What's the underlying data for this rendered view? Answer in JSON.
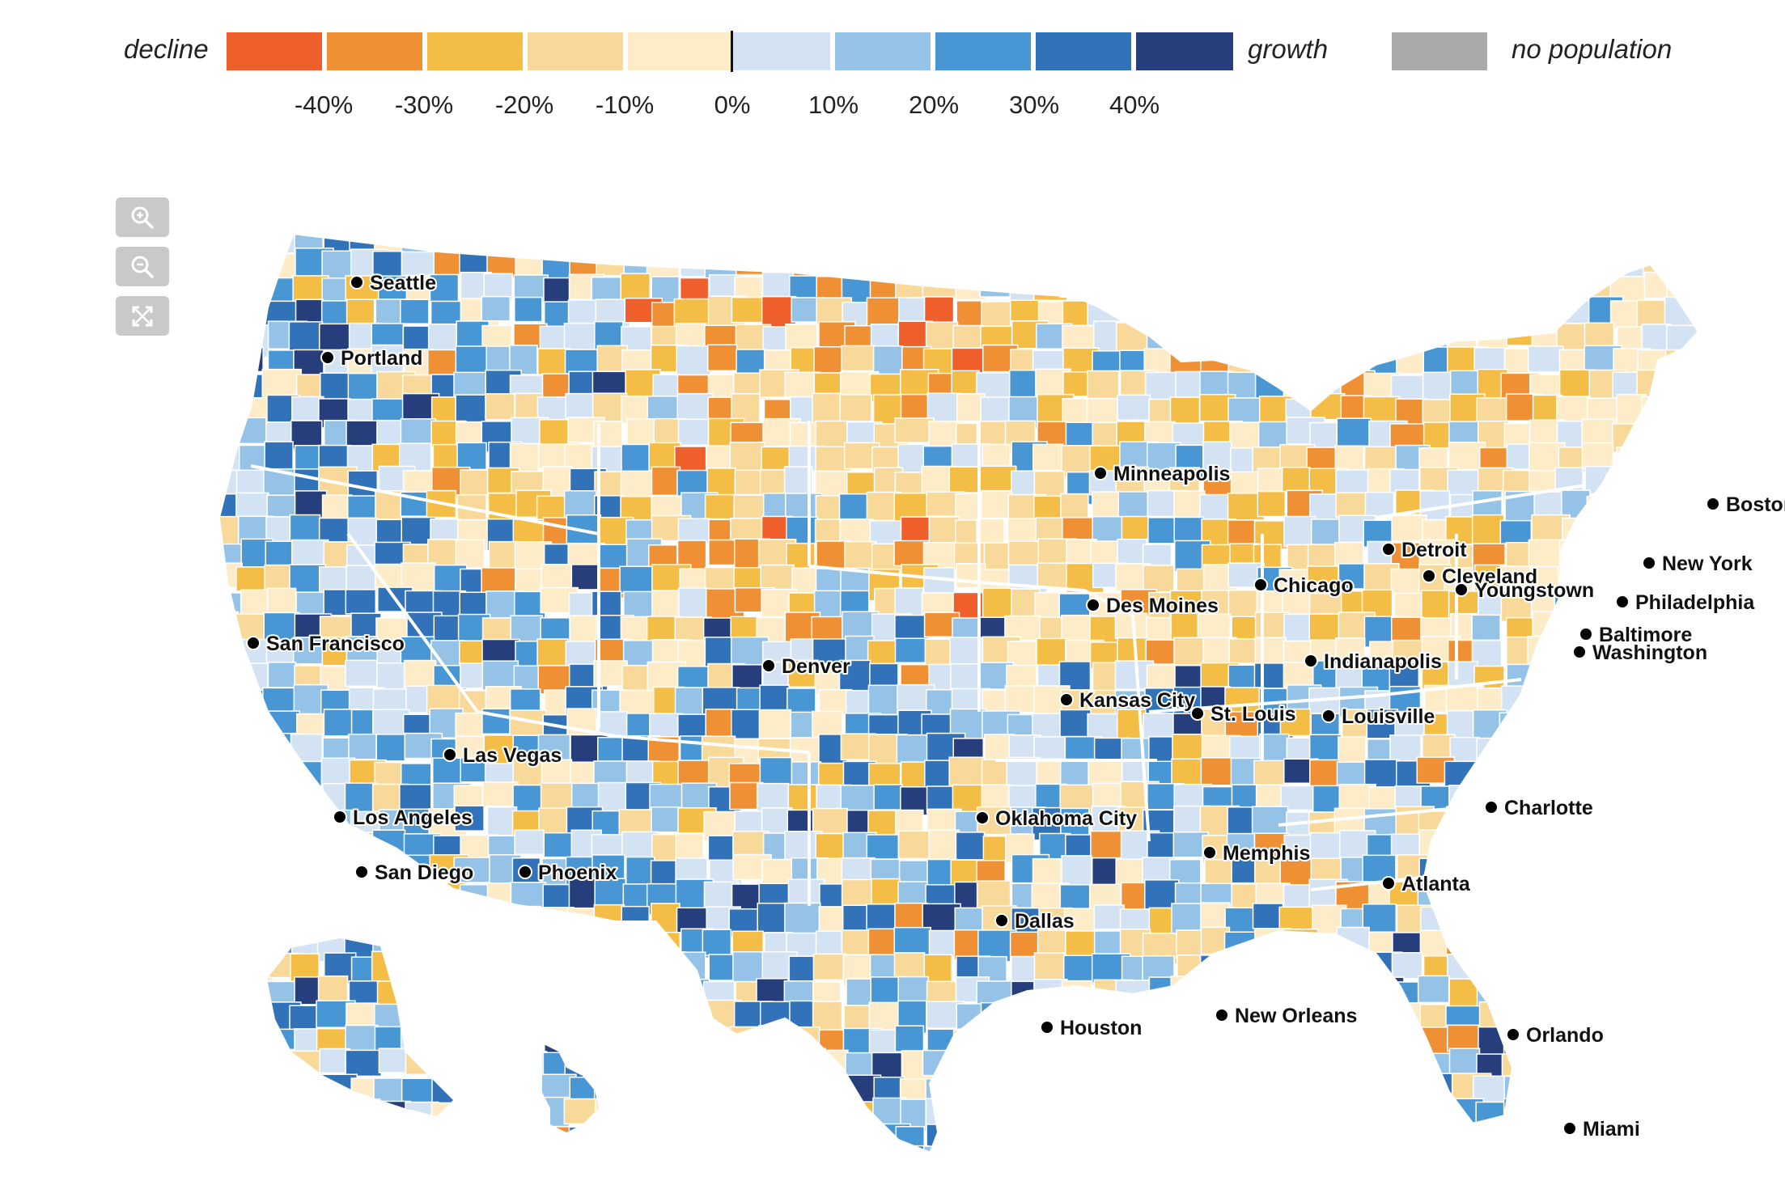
{
  "legend": {
    "decline_label": "decline",
    "growth_label": "growth",
    "no_population_label": "no population",
    "ticks": [
      "-40%",
      "-30%",
      "-20%",
      "-10%",
      "0%",
      "10%",
      "20%",
      "30%",
      "40%"
    ],
    "colors": [
      "#ee5f2c",
      "#f09035",
      "#f4bd45",
      "#f8d99a",
      "#fdecc7",
      "#d4e3f3",
      "#94c3e7",
      "#4896d3",
      "#3272b8",
      "#263f7c"
    ],
    "no_population_color": "#aaaaaa"
  },
  "controls": {
    "zoom_in": "zoom-in-icon",
    "zoom_out": "zoom-out-icon",
    "fullscreen": "fullscreen-icon"
  },
  "cities": [
    {
      "name": "Seattle"
    },
    {
      "name": "Portland"
    },
    {
      "name": "San Francisco"
    },
    {
      "name": "Los Angeles"
    },
    {
      "name": "San Diego"
    },
    {
      "name": "Las Vegas"
    },
    {
      "name": "Phoenix"
    },
    {
      "name": "Denver"
    },
    {
      "name": "Minneapolis"
    },
    {
      "name": "Des Moines"
    },
    {
      "name": "Kansas City"
    },
    {
      "name": "Oklahoma City"
    },
    {
      "name": "Dallas"
    },
    {
      "name": "Houston"
    },
    {
      "name": "Chicago"
    },
    {
      "name": "St. Louis"
    },
    {
      "name": "Memphis"
    },
    {
      "name": "New Orleans"
    },
    {
      "name": "Indianapolis"
    },
    {
      "name": "Louisville"
    },
    {
      "name": "Detroit"
    },
    {
      "name": "Cleveland"
    },
    {
      "name": "Youngstown"
    },
    {
      "name": "Atlanta"
    },
    {
      "name": "Charlotte"
    },
    {
      "name": "Orlando"
    },
    {
      "name": "Miami"
    },
    {
      "name": "Washington"
    },
    {
      "name": "Baltimore"
    },
    {
      "name": "Philadelphia"
    },
    {
      "name": "New York"
    },
    {
      "name": "Boston"
    }
  ]
}
